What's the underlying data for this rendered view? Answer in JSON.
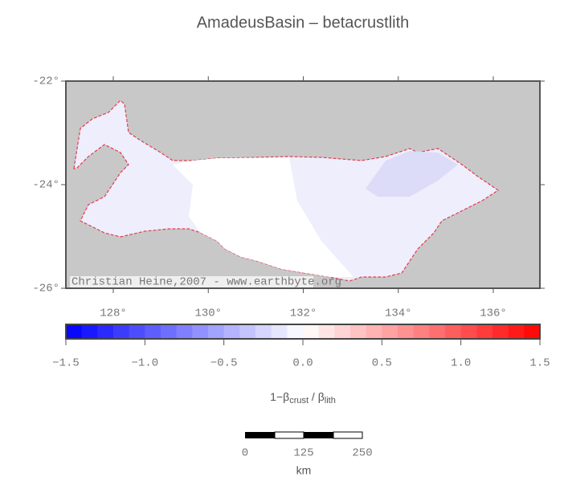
{
  "title": "AmadeusBasin – betacrustlith",
  "map": {
    "lat_ticks": [
      "-22°",
      "-24°",
      "-26°"
    ],
    "lon_ticks": [
      "128°",
      "130°",
      "132°",
      "134°",
      "136°"
    ],
    "credit": "Christian Heine,2007 - www.earthbyte.org"
  },
  "colorbar": {
    "ticks": [
      "−1.5",
      "−1.0",
      "−0.5",
      "0.0",
      "0.5",
      "1.0",
      "1.5"
    ],
    "label": {
      "prefix": "1−β",
      "sub1": "crust",
      "mid": " / β",
      "sub2": "lith"
    }
  },
  "scalebar": {
    "ticks": [
      "0",
      "125",
      "250"
    ],
    "unit": "km"
  }
}
